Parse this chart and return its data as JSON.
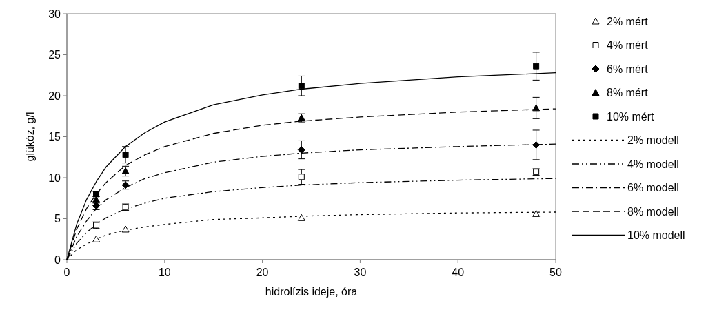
{
  "chart_data": {
    "type": "scatter",
    "xlabel": "hidrolízis ideje, óra",
    "ylabel": "glükóz, g/l",
    "xlim": [
      0,
      50
    ],
    "xticks": [
      0,
      10,
      20,
      30,
      40,
      50
    ],
    "ylim": [
      0,
      30
    ],
    "yticks": [
      0,
      5,
      10,
      15,
      20,
      25,
      30
    ],
    "legend": "right",
    "series": [
      {
        "name": "2% mért",
        "marker": "triangle",
        "color": "#ffffff",
        "x": [
          3,
          6,
          24,
          48
        ],
        "values": [
          2.5,
          3.7,
          5.1,
          5.6
        ]
      },
      {
        "name": "4% mért",
        "marker": "square",
        "color": "#ffffff",
        "x": [
          3,
          6,
          24,
          48
        ],
        "values": [
          4.2,
          6.4,
          10.1,
          10.7
        ],
        "errors": [
          0.4,
          0.4,
          0.9,
          0.4
        ]
      },
      {
        "name": "6% mért",
        "marker": "diamond",
        "color": "#000000",
        "x": [
          3,
          6,
          24,
          48
        ],
        "values": [
          6.6,
          9.1,
          13.4,
          14.0
        ],
        "errors": [
          0.5,
          0.5,
          1.1,
          1.8
        ]
      },
      {
        "name": "8% mért",
        "marker": "triangle",
        "color": "#000000",
        "x": [
          3,
          6,
          24,
          48
        ],
        "values": [
          7.3,
          10.8,
          17.3,
          18.5
        ],
        "errors": [
          0.4,
          0.6,
          0.5,
          1.3
        ]
      },
      {
        "name": "10% mért",
        "marker": "square",
        "color": "#000000",
        "x": [
          3,
          6,
          24,
          48
        ],
        "values": [
          8.0,
          12.8,
          21.2,
          23.6
        ],
        "errors": [
          0.3,
          1.0,
          1.2,
          1.7
        ]
      },
      {
        "name": "2% modell",
        "type": "line",
        "line_style": "dotted",
        "color": "#000000",
        "x": [
          0,
          1,
          2,
          3,
          4,
          6,
          8,
          10,
          15,
          20,
          24,
          30,
          40,
          50
        ],
        "values": [
          0,
          1.2,
          1.9,
          2.5,
          3.0,
          3.6,
          4.0,
          4.3,
          4.9,
          5.1,
          5.3,
          5.5,
          5.7,
          5.8
        ]
      },
      {
        "name": "4% modell",
        "type": "line",
        "line_style": "dashdotdot",
        "color": "#000000",
        "x": [
          0,
          1,
          2,
          3,
          4,
          6,
          8,
          10,
          15,
          20,
          24,
          30,
          40,
          50
        ],
        "values": [
          0,
          2.0,
          3.3,
          4.3,
          5.1,
          6.2,
          6.9,
          7.5,
          8.3,
          8.8,
          9.1,
          9.4,
          9.7,
          9.9
        ]
      },
      {
        "name": "6% modell",
        "type": "line",
        "line_style": "dashdot",
        "color": "#000000",
        "x": [
          0,
          1,
          2,
          3,
          4,
          6,
          8,
          10,
          15,
          20,
          24,
          30,
          40,
          50
        ],
        "values": [
          0,
          2.8,
          4.7,
          6.2,
          7.3,
          8.8,
          9.9,
          10.6,
          11.9,
          12.6,
          13.0,
          13.4,
          13.8,
          14.1
        ]
      },
      {
        "name": "8% modell",
        "type": "line",
        "line_style": "dashed",
        "color": "#000000",
        "x": [
          0,
          1,
          2,
          3,
          4,
          6,
          8,
          10,
          15,
          20,
          24,
          30,
          40,
          50
        ],
        "values": [
          0,
          3.7,
          6.2,
          8.0,
          9.4,
          11.5,
          12.8,
          13.8,
          15.4,
          16.4,
          16.9,
          17.4,
          18.0,
          18.4
        ]
      },
      {
        "name": "10% modell",
        "type": "line",
        "line_style": "solid",
        "color": "#000000",
        "x": [
          0,
          1,
          2,
          3,
          4,
          6,
          8,
          10,
          15,
          20,
          24,
          30,
          40,
          50
        ],
        "values": [
          0,
          4.3,
          7.3,
          9.5,
          11.3,
          13.8,
          15.5,
          16.8,
          18.9,
          20.1,
          20.8,
          21.5,
          22.3,
          22.8
        ]
      }
    ]
  }
}
